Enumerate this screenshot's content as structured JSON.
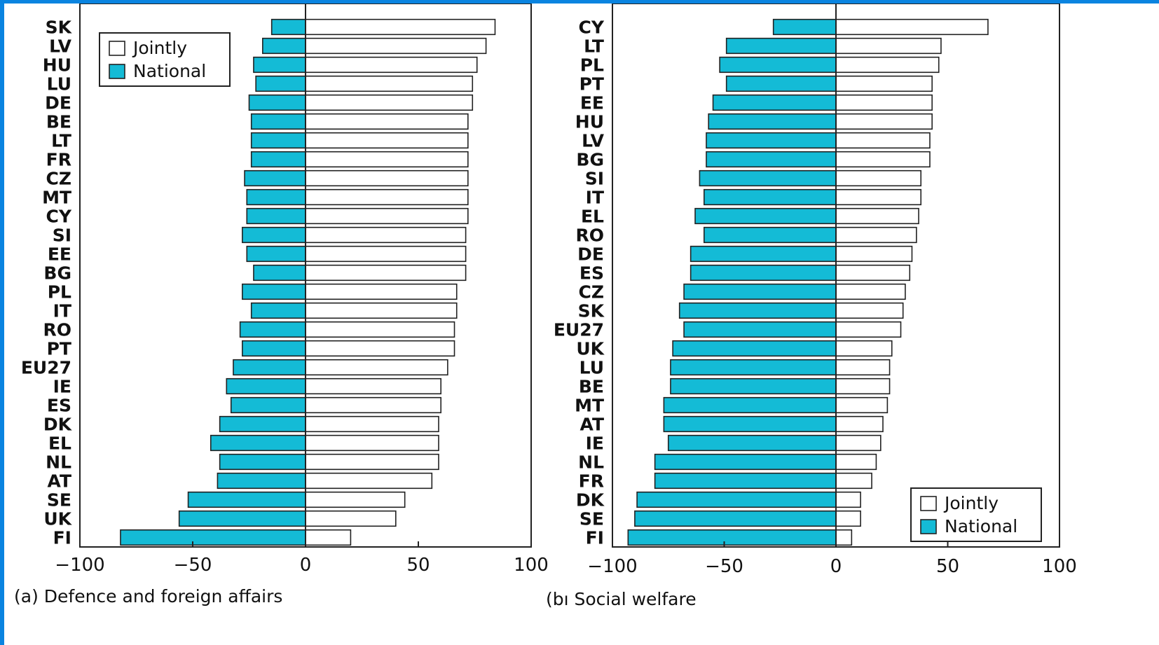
{
  "chart_data": [
    {
      "type": "bar",
      "orientation": "horizontal",
      "caption": "(a) Defence and foreign affairs",
      "categories": [
        "SK",
        "LV",
        "HU",
        "LU",
        "DE",
        "BE",
        "LT",
        "FR",
        "CZ",
        "MT",
        "CY",
        "SI",
        "EE",
        "BG",
        "PL",
        "IT",
        "RO",
        "PT",
        "EU27",
        "IE",
        "ES",
        "DK",
        "EL",
        "NL",
        "AT",
        "SE",
        "UK",
        "FI"
      ],
      "series": [
        {
          "name": "Jointly",
          "values": [
            84,
            80,
            76,
            74,
            74,
            72,
            72,
            72,
            72,
            72,
            72,
            71,
            71,
            71,
            67,
            67,
            66,
            66,
            63,
            60,
            60,
            59,
            59,
            59,
            56,
            44,
            40,
            20
          ]
        },
        {
          "name": "National",
          "values": [
            -15,
            -19,
            -23,
            -22,
            -25,
            -24,
            -24,
            -24,
            -27,
            -26,
            -26,
            -28,
            -26,
            -23,
            -28,
            -24,
            -29,
            -28,
            -32,
            -35,
            -33,
            -38,
            -42,
            -38,
            -39,
            -52,
            -56,
            -82
          ]
        }
      ],
      "xlim": [
        -100,
        100
      ],
      "xticks": [
        "−100",
        "−50",
        "0",
        "50",
        "100"
      ],
      "legend": "top-left",
      "grid": false
    },
    {
      "type": "bar",
      "orientation": "horizontal",
      "caption": "(bı Social welfare",
      "categories": [
        "CY",
        "LT",
        "PL",
        "PT",
        "EE",
        "HU",
        "LV",
        "BG",
        "SI",
        "IT",
        "EL",
        "RO",
        "DE",
        "ES",
        "CZ",
        "SK",
        "EU27",
        "UK",
        "LU",
        "BE",
        "MT",
        "AT",
        "IE",
        "NL",
        "FR",
        "DK",
        "SE",
        "FI"
      ],
      "series": [
        {
          "name": "Jointly",
          "values": [
            68,
            47,
            46,
            43,
            43,
            43,
            42,
            42,
            38,
            38,
            37,
            36,
            34,
            33,
            31,
            30,
            29,
            25,
            24,
            24,
            23,
            21,
            20,
            18,
            16,
            11,
            11,
            7
          ]
        },
        {
          "name": "National",
          "values": [
            -28,
            -49,
            -52,
            -49,
            -55,
            -57,
            -58,
            -58,
            -61,
            -59,
            -63,
            -59,
            -65,
            -65,
            -68,
            -70,
            -68,
            -73,
            -74,
            -74,
            -77,
            -77,
            -75,
            -81,
            -81,
            -89,
            -90,
            -93
          ]
        }
      ],
      "xlim": [
        -100,
        100
      ],
      "xticks": [
        "−100",
        "−50",
        "0",
        "50",
        "100"
      ],
      "legend": "bottom-right",
      "grid": false
    }
  ],
  "colors": {
    "national": "#14bbd6",
    "jointly": "#ffffff",
    "outline": "#222222"
  }
}
